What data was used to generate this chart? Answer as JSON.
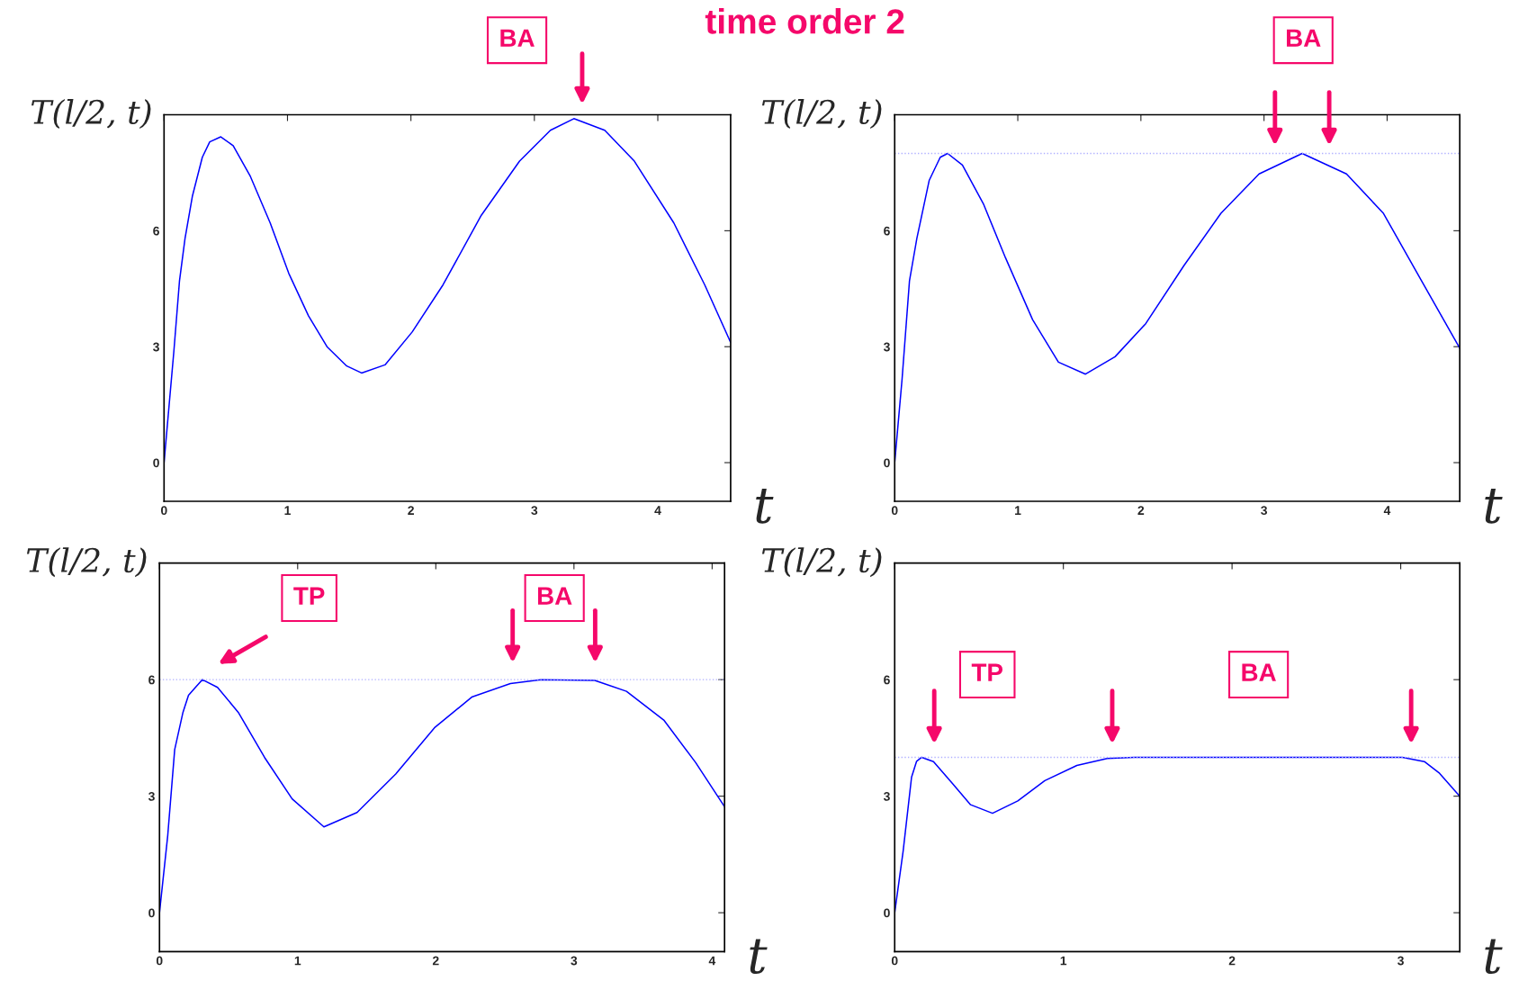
{
  "chart_data": [
    {
      "type": "line",
      "title": "time order 2",
      "ylabel": "T(l/2, t)",
      "xlabel": "t",
      "xlim": [
        0,
        4.59
      ],
      "ylim": [
        -1,
        9
      ],
      "xticks": [
        0,
        1,
        2,
        3,
        4
      ],
      "yticks": [
        0,
        3,
        6
      ],
      "series": [
        {
          "color": "#0000ff",
          "x": [
            0,
            0.08,
            0.125,
            0.17,
            0.23,
            0.31,
            0.37,
            0.46,
            0.56,
            0.7,
            0.86,
            1.01,
            1.17,
            1.32,
            1.48,
            1.6,
            1.79,
            2.01,
            2.26,
            2.57,
            2.88,
            3.13,
            3.32,
            3.57,
            3.81,
            4.13,
            4.38,
            4.59
          ],
          "values": [
            0,
            2.9,
            4.7,
            5.8,
            6.9,
            7.9,
            8.3,
            8.43,
            8.2,
            7.4,
            6.2,
            4.9,
            3.8,
            3.0,
            2.5,
            2.32,
            2.53,
            3.38,
            4.6,
            6.4,
            7.8,
            8.6,
            8.9,
            8.6,
            7.8,
            6.2,
            4.6,
            3.11
          ]
        }
      ],
      "annotations": [
        "BA"
      ]
    },
    {
      "type": "line",
      "ylabel": "T(l/2, t)",
      "xlabel": "t",
      "xlim": [
        0,
        4.59
      ],
      "ylim": [
        -1,
        9
      ],
      "xticks": [
        0,
        1,
        2,
        3,
        4
      ],
      "yticks": [
        0,
        3,
        6
      ],
      "series": [
        {
          "color": "#0000ff",
          "x": [
            0,
            0.06,
            0.12,
            0.18,
            0.28,
            0.37,
            0.43,
            0.55,
            0.72,
            0.9,
            1.12,
            1.33,
            1.55,
            1.79,
            2.04,
            2.35,
            2.65,
            2.96,
            3.31,
            3.67,
            3.97,
            4.28,
            4.59
          ],
          "values": [
            0,
            2.16,
            4.7,
            5.8,
            7.3,
            7.9,
            8.0,
            7.7,
            6.7,
            5.3,
            3.7,
            2.6,
            2.29,
            2.74,
            3.6,
            5.1,
            6.45,
            7.47,
            8.0,
            7.47,
            6.45,
            4.7,
            2.96
          ]
        }
      ],
      "ref_lines": [
        {
          "axis": "y",
          "value": 8,
          "color": "#b0b0ff",
          "line_style": "dotted"
        }
      ],
      "annotations": [
        "BA"
      ]
    },
    {
      "type": "line",
      "ylabel": "T(l/2, t)",
      "xlabel": "t",
      "xlim": [
        0,
        4.09
      ],
      "ylim": [
        -1,
        9
      ],
      "xticks": [
        0,
        1,
        2,
        3,
        4
      ],
      "yticks": [
        0,
        3,
        6
      ],
      "series": [
        {
          "color": "#0000ff",
          "x": [
            0,
            0.06,
            0.11,
            0.17,
            0.21,
            0.31,
            0.42,
            0.57,
            0.76,
            0.96,
            1.19,
            1.43,
            1.71,
            1.99,
            2.26,
            2.54,
            2.76,
            3.15,
            3.38,
            3.65,
            3.88,
            4.09
          ],
          "values": [
            0,
            2.0,
            4.2,
            5.16,
            5.6,
            6.0,
            5.8,
            5.16,
            4.0,
            2.93,
            2.21,
            2.58,
            3.57,
            4.76,
            5.55,
            5.9,
            6.0,
            5.98,
            5.7,
            4.96,
            3.87,
            2.73
          ]
        }
      ],
      "ref_lines": [
        {
          "axis": "y",
          "value": 6,
          "color": "#b0b0ff",
          "line_style": "dotted"
        }
      ],
      "annotations": [
        "TP",
        "BA"
      ]
    },
    {
      "type": "line",
      "ylabel": "T(l/2, t)",
      "xlabel": "t",
      "xlim": [
        0,
        3.35
      ],
      "ylim": [
        -1,
        9
      ],
      "xticks": [
        0,
        1,
        2,
        3
      ],
      "yticks": [
        0,
        3,
        6
      ],
      "series": [
        {
          "color": "#0000ff",
          "x": [
            0,
            0.05,
            0.1,
            0.13,
            0.16,
            0.23,
            0.34,
            0.45,
            0.58,
            0.73,
            0.89,
            1.08,
            1.26,
            1.42,
            2.0,
            2.9,
            3.01,
            3.14,
            3.23,
            3.35
          ],
          "values": [
            0,
            1.58,
            3.49,
            3.9,
            4.0,
            3.89,
            3.34,
            2.78,
            2.56,
            2.88,
            3.4,
            3.79,
            3.97,
            4.0,
            4.0,
            4.0,
            4.0,
            3.89,
            3.59,
            3.0
          ]
        }
      ],
      "ref_lines": [
        {
          "axis": "y",
          "value": 4,
          "color": "#b0b0ff",
          "line_style": "dotted"
        }
      ],
      "annotations": [
        "TP",
        "BA"
      ]
    }
  ]
}
